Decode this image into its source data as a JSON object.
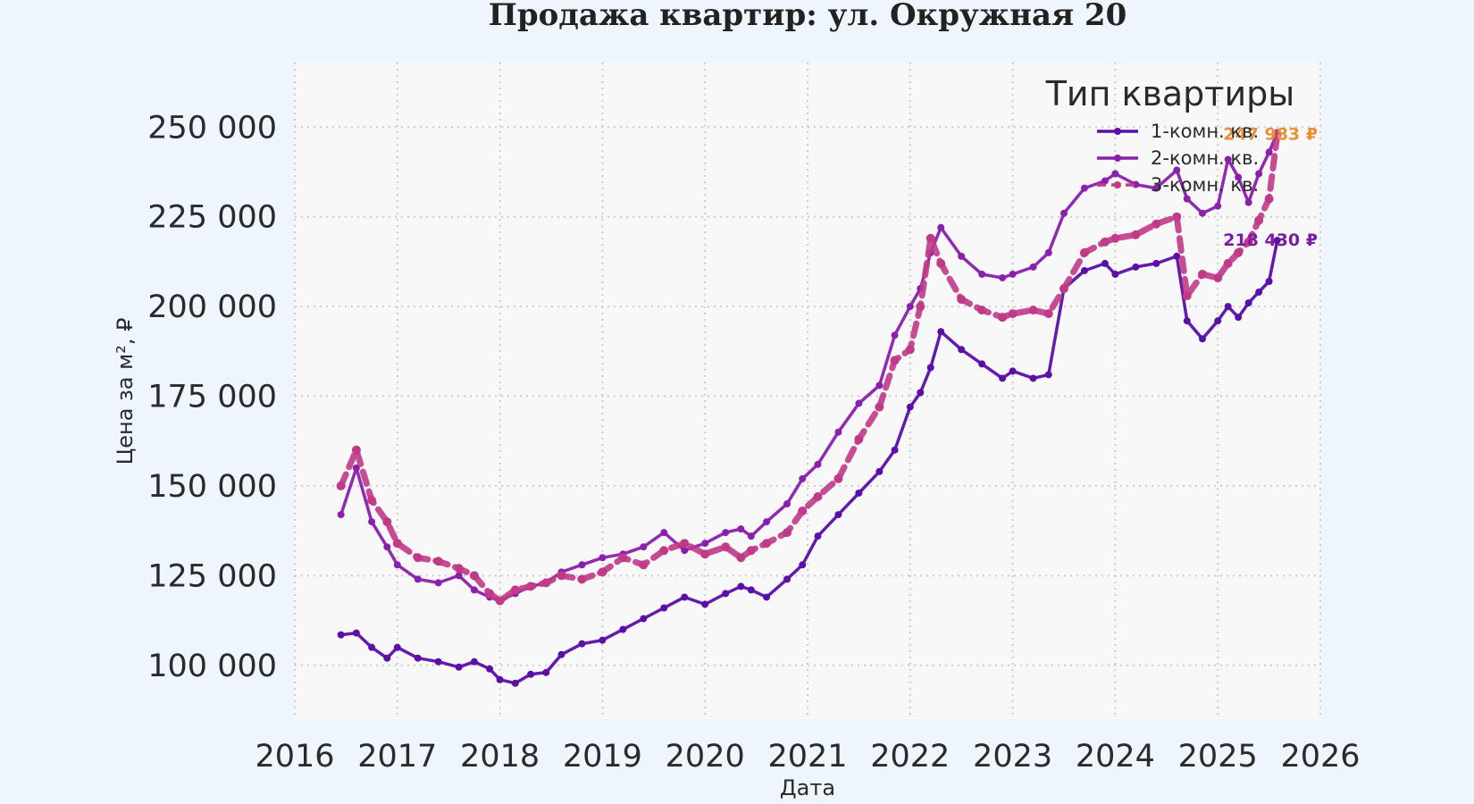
{
  "chart_data": {
    "type": "line",
    "title": "Продажа квартир: ул. Окружная 20",
    "xlabel": "Дата",
    "ylabel": "Цена за м², ₽",
    "xlim": [
      2016.0,
      2026.0
    ],
    "ylim": [
      85000,
      268000
    ],
    "x_ticks": [
      "2016",
      "2017",
      "2018",
      "2019",
      "2020",
      "2021",
      "2022",
      "2023",
      "2024",
      "2025",
      "2026"
    ],
    "y_ticks": [
      "100 000",
      "125 000",
      "150 000",
      "175 000",
      "200 000",
      "225 000",
      "250 000"
    ],
    "y_tick_values": [
      100000,
      125000,
      150000,
      175000,
      200000,
      225000,
      250000
    ],
    "grid": true,
    "legend": {
      "title": "Тип квартиры",
      "position": "top-right"
    },
    "end_labels": [
      {
        "text": "247 983 ₽",
        "value": 247983,
        "color": "#e8913a"
      },
      {
        "text": "218 430 ₽",
        "value": 218430,
        "color": "#7a1fa2"
      }
    ],
    "x": [
      2016.45,
      2016.6,
      2016.75,
      2016.9,
      2017.0,
      2017.2,
      2017.4,
      2017.6,
      2017.75,
      2017.9,
      2018.0,
      2018.15,
      2018.3,
      2018.45,
      2018.6,
      2018.8,
      2019.0,
      2019.2,
      2019.4,
      2019.6,
      2019.8,
      2020.0,
      2020.2,
      2020.35,
      2020.45,
      2020.6,
      2020.8,
      2020.95,
      2021.1,
      2021.3,
      2021.5,
      2021.7,
      2021.85,
      2022.0,
      2022.1,
      2022.2,
      2022.3,
      2022.5,
      2022.7,
      2022.9,
      2023.0,
      2023.2,
      2023.35,
      2023.5,
      2023.7,
      2023.9,
      2024.0,
      2024.2,
      2024.4,
      2024.6,
      2024.7,
      2024.85,
      2025.0,
      2025.1,
      2025.2,
      2025.3,
      2025.4,
      2025.5,
      2025.58
    ],
    "series": [
      {
        "name": "1-комн. кв.",
        "color": "#5b0fa8",
        "dashed": false,
        "values": [
          108500,
          109000,
          105000,
          102000,
          105000,
          102000,
          101000,
          99500,
          101000,
          99000,
          96000,
          95000,
          97500,
          98000,
          103000,
          106000,
          107000,
          110000,
          113000,
          116000,
          119000,
          117000,
          120000,
          122000,
          121000,
          119000,
          124000,
          128000,
          136000,
          142000,
          148000,
          154000,
          160000,
          172000,
          176000,
          183000,
          193000,
          188000,
          184000,
          180000,
          182000,
          180000,
          181000,
          205000,
          210000,
          212000,
          209000,
          211000,
          212000,
          214000,
          196000,
          191000,
          196000,
          200000,
          197000,
          201000,
          204000,
          207000,
          218430
        ]
      },
      {
        "name": "2-комн. кв.",
        "color": "#8a1fad",
        "dashed": false,
        "values": [
          142000,
          155000,
          140000,
          133000,
          128000,
          124000,
          123000,
          125000,
          121000,
          119000,
          118000,
          120000,
          122000,
          123000,
          126000,
          128000,
          130000,
          131000,
          133000,
          137000,
          132000,
          134000,
          137000,
          138000,
          136000,
          140000,
          145000,
          152000,
          156000,
          165000,
          173000,
          178000,
          192000,
          200000,
          205000,
          215000,
          222000,
          214000,
          209000,
          208000,
          209000,
          211000,
          215000,
          226000,
          233000,
          235000,
          237000,
          234000,
          233000,
          238000,
          230000,
          226000,
          228000,
          241000,
          236000,
          229000,
          237000,
          243000,
          248500
        ]
      },
      {
        "name": "3-комн. кв.",
        "color": "#c03a88",
        "dashed": true,
        "values": [
          150000,
          160000,
          146000,
          140000,
          134000,
          130000,
          129000,
          127000,
          125000,
          120000,
          118000,
          121000,
          122000,
          123000,
          125000,
          124000,
          126000,
          130000,
          128000,
          132000,
          134000,
          131000,
          133000,
          130000,
          132000,
          134000,
          137000,
          143000,
          147000,
          152000,
          163000,
          172000,
          185000,
          188000,
          200000,
          219000,
          212000,
          202000,
          199000,
          197000,
          198000,
          199000,
          198000,
          205000,
          215000,
          218000,
          219000,
          220000,
          223000,
          225000,
          203000,
          209000,
          208000,
          212000,
          215000,
          218000,
          224000,
          230000,
          247983
        ]
      }
    ]
  }
}
